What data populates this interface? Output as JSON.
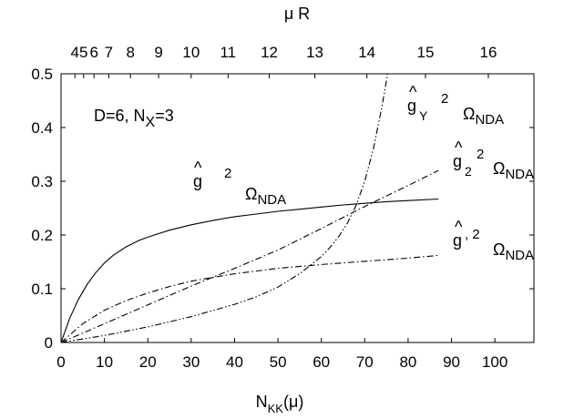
{
  "chart_data": {
    "type": "line",
    "xlabel_main": "N",
    "xlabel_sub": "KK",
    "xlabel_tail": "(μ)",
    "top_axis_label": "μ R",
    "xlim": [
      0,
      109
    ],
    "ylim": [
      0,
      0.5
    ],
    "x_ticks": [
      0,
      10,
      20,
      30,
      40,
      50,
      60,
      70,
      80,
      90,
      100
    ],
    "y_ticks": [
      0,
      0.1,
      0.2,
      0.3,
      0.4,
      0.5
    ],
    "x_tick_labels": [
      "0",
      "10",
      "20",
      "30",
      "40",
      "50",
      "60",
      "70",
      "80",
      "90",
      "100"
    ],
    "y_tick_labels": [
      "0",
      "0.1",
      "0.2",
      "0.3",
      "0.4",
      "0.5"
    ],
    "top_ticks": [
      {
        "label": "4",
        "x": 3.2
      },
      {
        "label": "5",
        "x": 5.2
      },
      {
        "label": "6",
        "x": 7.6
      },
      {
        "label": "7",
        "x": 11.0
      },
      {
        "label": "8",
        "x": 16.0
      },
      {
        "label": "9",
        "x": 22.5
      },
      {
        "label": "10",
        "x": 30.0
      },
      {
        "label": "11",
        "x": 38.5
      },
      {
        "label": "12",
        "x": 48.0
      },
      {
        "label": "13",
        "x": 58.5
      },
      {
        "label": "14",
        "x": 70.5
      },
      {
        "label": "15",
        "x": 84.0
      },
      {
        "label": "16",
        "x": 98.5
      }
    ],
    "annotation": {
      "text": "D=6, N",
      "sub": "X",
      "tail": "=3"
    },
    "series": [
      {
        "id": "g",
        "style": "solid",
        "points": [
          [
            0,
            0
          ],
          [
            2,
            0.045
          ],
          [
            4,
            0.08
          ],
          [
            6,
            0.108
          ],
          [
            8,
            0.13
          ],
          [
            10,
            0.148
          ],
          [
            12,
            0.162
          ],
          [
            15,
            0.178
          ],
          [
            18,
            0.19
          ],
          [
            20,
            0.196
          ],
          [
            25,
            0.209
          ],
          [
            30,
            0.219
          ],
          [
            35,
            0.227
          ],
          [
            40,
            0.234
          ],
          [
            45,
            0.239
          ],
          [
            50,
            0.244
          ],
          [
            55,
            0.248
          ],
          [
            60,
            0.252
          ],
          [
            65,
            0.256
          ],
          [
            70,
            0.259
          ],
          [
            75,
            0.262
          ],
          [
            80,
            0.264
          ],
          [
            87,
            0.267
          ]
        ]
      },
      {
        "id": "g2",
        "style": "dash-dot",
        "points": [
          [
            0,
            0
          ],
          [
            10,
            0.035
          ],
          [
            20,
            0.07
          ],
          [
            30,
            0.105
          ],
          [
            40,
            0.138
          ],
          [
            50,
            0.172
          ],
          [
            60,
            0.212
          ],
          [
            70,
            0.253
          ],
          [
            80,
            0.292
          ],
          [
            87,
            0.32
          ]
        ]
      },
      {
        "id": "g1",
        "style": "dash-dot",
        "points": [
          [
            0,
            0
          ],
          [
            5,
            0.035
          ],
          [
            10,
            0.06
          ],
          [
            15,
            0.078
          ],
          [
            20,
            0.092
          ],
          [
            25,
            0.104
          ],
          [
            30,
            0.114
          ],
          [
            40,
            0.128
          ],
          [
            50,
            0.138
          ],
          [
            60,
            0.145
          ],
          [
            70,
            0.151
          ],
          [
            80,
            0.157
          ],
          [
            87,
            0.162
          ]
        ]
      },
      {
        "id": "gY",
        "style": "dash-dot-dot",
        "points": [
          [
            0,
            0
          ],
          [
            10,
            0.013
          ],
          [
            20,
            0.029
          ],
          [
            30,
            0.048
          ],
          [
            40,
            0.071
          ],
          [
            45,
            0.085
          ],
          [
            50,
            0.103
          ],
          [
            55,
            0.128
          ],
          [
            60,
            0.16
          ],
          [
            62,
            0.177
          ],
          [
            64,
            0.197
          ],
          [
            66,
            0.222
          ],
          [
            68,
            0.255
          ],
          [
            70,
            0.3
          ],
          [
            72,
            0.36
          ],
          [
            74,
            0.44
          ],
          [
            75.3,
            0.5
          ]
        ]
      }
    ],
    "curve_labels": [
      {
        "id": "g",
        "hat": "^",
        "base": "g",
        "sub": "",
        "sup": "2",
        "omega": "Ω",
        "omega_sub": "NDA"
      },
      {
        "id": "gY",
        "hat": "^",
        "base": "g",
        "sub": "Y",
        "sup": "2",
        "omega": "Ω",
        "omega_sub": "NDA"
      },
      {
        "id": "g2",
        "hat": "^",
        "base": "g",
        "sub": "2",
        "sup": "2",
        "omega": "Ω",
        "omega_sub": "NDA"
      },
      {
        "id": "g1",
        "hat": "^",
        "base": "g",
        "sub": "",
        "sup": ", 2",
        "omega": "Ω",
        "omega_sub": "NDA"
      }
    ]
  }
}
